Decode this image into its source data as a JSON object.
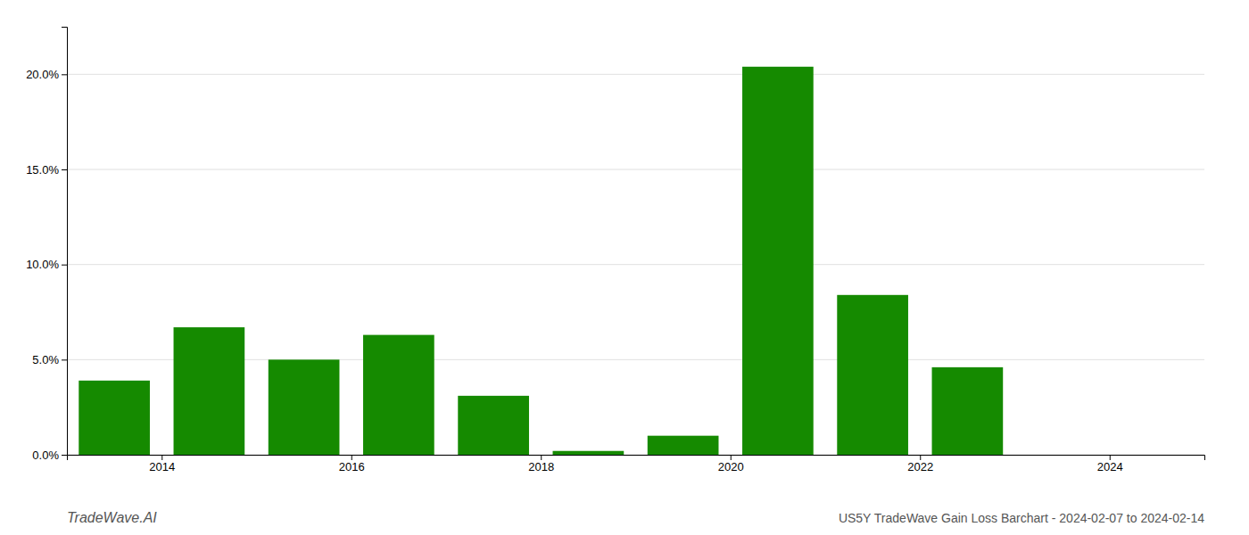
{
  "chart_data": {
    "type": "bar",
    "title": "US5Y TradeWave Gain Loss Barchart - 2024-02-07 to 2024-02-14",
    "annotations": [
      "TradeWave.AI"
    ],
    "x": [
      2013,
      2014,
      2015,
      2016,
      2017,
      2018,
      2019,
      2020,
      2021,
      2022,
      2023
    ],
    "values": [
      0.039,
      0.067,
      0.05,
      0.063,
      0.031,
      0.002,
      0.01,
      0.204,
      0.084,
      0.046,
      0.0
    ],
    "color": "#158a00",
    "xlim": [
      2012.5,
      2024.5
    ],
    "xticks": [
      {
        "value": 2013.5,
        "label": "2014"
      },
      {
        "value": 2015.5,
        "label": "2016"
      },
      {
        "value": 2017.5,
        "label": "2018"
      },
      {
        "value": 2019.5,
        "label": "2020"
      },
      {
        "value": 2021.5,
        "label": "2022"
      },
      {
        "value": 2023.5,
        "label": "2024"
      }
    ],
    "ylim": [
      0,
      0.225
    ],
    "yticks": [
      {
        "value": 0.0,
        "label": "0.0%"
      },
      {
        "value": 0.05,
        "label": "5.0%"
      },
      {
        "value": 0.1,
        "label": "10.0%"
      },
      {
        "value": 0.15,
        "label": "15.0%"
      },
      {
        "value": 0.2,
        "label": "20.0%"
      }
    ],
    "grid": true
  }
}
